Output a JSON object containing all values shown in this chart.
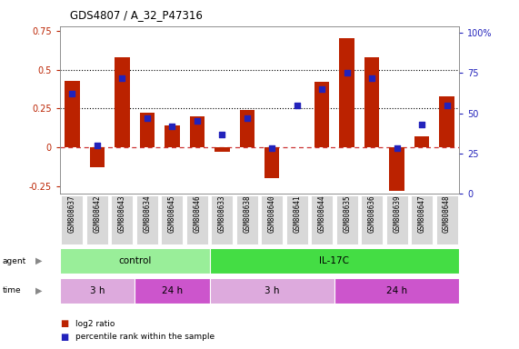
{
  "title": "GDS4807 / A_32_P47316",
  "samples": [
    "GSM808637",
    "GSM808642",
    "GSM808643",
    "GSM808634",
    "GSM808645",
    "GSM808646",
    "GSM808633",
    "GSM808638",
    "GSM808640",
    "GSM808641",
    "GSM808644",
    "GSM808635",
    "GSM808636",
    "GSM808639",
    "GSM808647",
    "GSM808648"
  ],
  "log2_ratio": [
    0.43,
    -0.13,
    0.58,
    0.22,
    0.14,
    0.2,
    -0.03,
    0.24,
    -0.2,
    0.0,
    0.42,
    0.7,
    0.58,
    -0.28,
    0.07,
    0.33
  ],
  "percentile": [
    62,
    30,
    72,
    47,
    42,
    45,
    37,
    47,
    28,
    55,
    65,
    75,
    72,
    28,
    43,
    55
  ],
  "bar_color": "#bb2200",
  "dot_color": "#2222bb",
  "ylim_left": [
    -0.3,
    0.78
  ],
  "ylim_right": [
    0,
    104
  ],
  "yticks_left": [
    -0.25,
    0.0,
    0.25,
    0.5,
    0.75
  ],
  "ytick_labels_left": [
    "-0.25",
    "0",
    "0.25",
    "0.5",
    "0.75"
  ],
  "yticks_right": [
    0,
    25,
    50,
    75,
    100
  ],
  "ytick_labels_right": [
    "0",
    "25",
    "50",
    "75",
    "100%"
  ],
  "hlines": [
    0.5,
    0.25
  ],
  "hline_zero_color": "#cc3333",
  "hline_dotted_color": "black",
  "agent_groups": [
    {
      "label": "control",
      "start": 0,
      "end": 5,
      "color": "#99ee99"
    },
    {
      "label": "IL-17C",
      "start": 6,
      "end": 15,
      "color": "#44dd44"
    }
  ],
  "time_groups": [
    {
      "label": "3 h",
      "start": 0,
      "end": 2,
      "color": "#ddaadd"
    },
    {
      "label": "24 h",
      "start": 3,
      "end": 5,
      "color": "#cc55cc"
    },
    {
      "label": "3 h",
      "start": 6,
      "end": 10,
      "color": "#ddaadd"
    },
    {
      "label": "24 h",
      "start": 11,
      "end": 15,
      "color": "#cc55cc"
    }
  ],
  "legend_items": [
    {
      "label": "log2 ratio",
      "color": "#bb2200"
    },
    {
      "label": "percentile rank within the sample",
      "color": "#2222bb"
    }
  ],
  "bar_width": 0.6,
  "background_color": "#ffffff",
  "plot_bg_color": "#ffffff",
  "sample_box_color": "#cccccc",
  "sample_box_inner": "#d8d8d8"
}
